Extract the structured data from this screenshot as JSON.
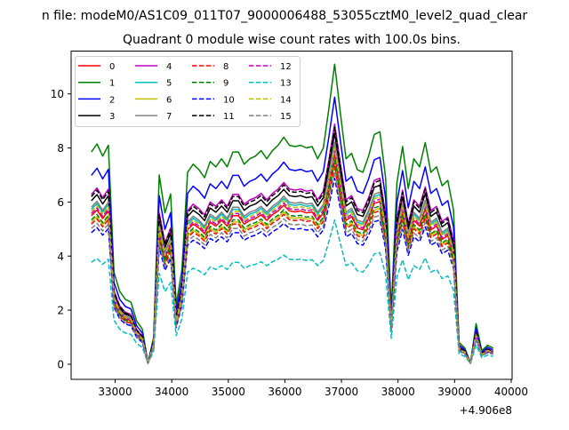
{
  "chart_data": {
    "type": "line",
    "suptitle": "n file: modeM0/AS1C09_011T07_9000006488_53055cztM0_level2_quad_clear",
    "title": "Quadrant 0 module wise count rates with 100.0s bins.",
    "xlabel": "",
    "ylabel": "",
    "x_offset_text": "+4.906e8",
    "x_start": 32580,
    "x_step": 100,
    "xlim": [
      32222,
      40016
    ],
    "ylim": [
      -0.56,
      11.6
    ],
    "xticks": [
      "33000",
      "34000",
      "35000",
      "36000",
      "37000",
      "38000",
      "39000",
      "40000"
    ],
    "xtick_values": [
      33000,
      34000,
      35000,
      36000,
      37000,
      38000,
      39000,
      40000
    ],
    "yticks": [
      "0",
      "2",
      "4",
      "6",
      "8",
      "10"
    ],
    "ytick_values": [
      0,
      2,
      4,
      6,
      8,
      10
    ],
    "grid": false,
    "legend_placement": "top-left",
    "base_profile": [
      7.85,
      8.15,
      7.7,
      8.1,
      3.4,
      2.7,
      2.4,
      2.3,
      1.6,
      1.3,
      0.05,
      1.0,
      7.0,
      5.6,
      6.3,
      2.2,
      3.5,
      7.1,
      7.4,
      7.2,
      6.9,
      7.5,
      7.3,
      7.6,
      7.3,
      7.85,
      7.85,
      7.4,
      7.6,
      7.7,
      7.9,
      7.6,
      7.9,
      8.1,
      8.4,
      8.1,
      8.05,
      8.1,
      8.0,
      8.05,
      7.6,
      8.0,
      9.5,
      11.1,
      9.3,
      7.6,
      7.8,
      7.2,
      7.1,
      7.7,
      8.5,
      8.6,
      6.9,
      2.0,
      6.7,
      8.05,
      6.5,
      7.6,
      7.3,
      8.2,
      7.1,
      7.3,
      6.6,
      6.8,
      5.7,
      0.8,
      0.6,
      0.05,
      1.5,
      0.5,
      0.7,
      0.6
    ],
    "series": [
      {
        "name": "0",
        "color": "#ff0000",
        "dash": false,
        "scale": 0.7
      },
      {
        "name": "1",
        "color": "#008000",
        "dash": false,
        "scale": 1.0
      },
      {
        "name": "2",
        "color": "#0000ff",
        "dash": false,
        "scale": 0.89
      },
      {
        "name": "3",
        "color": "#000000",
        "dash": false,
        "scale": 0.77
      },
      {
        "name": "4",
        "color": "#bf00bf",
        "dash": false,
        "scale": 0.8
      },
      {
        "name": "5",
        "color": "#00bfbf",
        "dash": false,
        "scale": 0.73
      },
      {
        "name": "6",
        "color": "#bfbf00",
        "dash": false,
        "scale": 0.67
      },
      {
        "name": "7",
        "color": "#808080",
        "dash": false,
        "scale": 0.74
      },
      {
        "name": "8",
        "color": "#ff0000",
        "dash": true,
        "scale": 0.66
      },
      {
        "name": "9",
        "color": "#008000",
        "dash": true,
        "scale": 0.68
      },
      {
        "name": "10",
        "color": "#0000ff",
        "dash": true,
        "scale": 0.62
      },
      {
        "name": "11",
        "color": "#000000",
        "dash": true,
        "scale": 0.79
      },
      {
        "name": "12",
        "color": "#bf00bf",
        "dash": true,
        "scale": 0.71
      },
      {
        "name": "13",
        "color": "#00bfbf",
        "dash": true,
        "scale": 0.48
      },
      {
        "name": "14",
        "color": "#bfbf00",
        "dash": true,
        "scale": 0.72
      },
      {
        "name": "15",
        "color": "#808080",
        "dash": true,
        "scale": 0.64
      }
    ]
  }
}
